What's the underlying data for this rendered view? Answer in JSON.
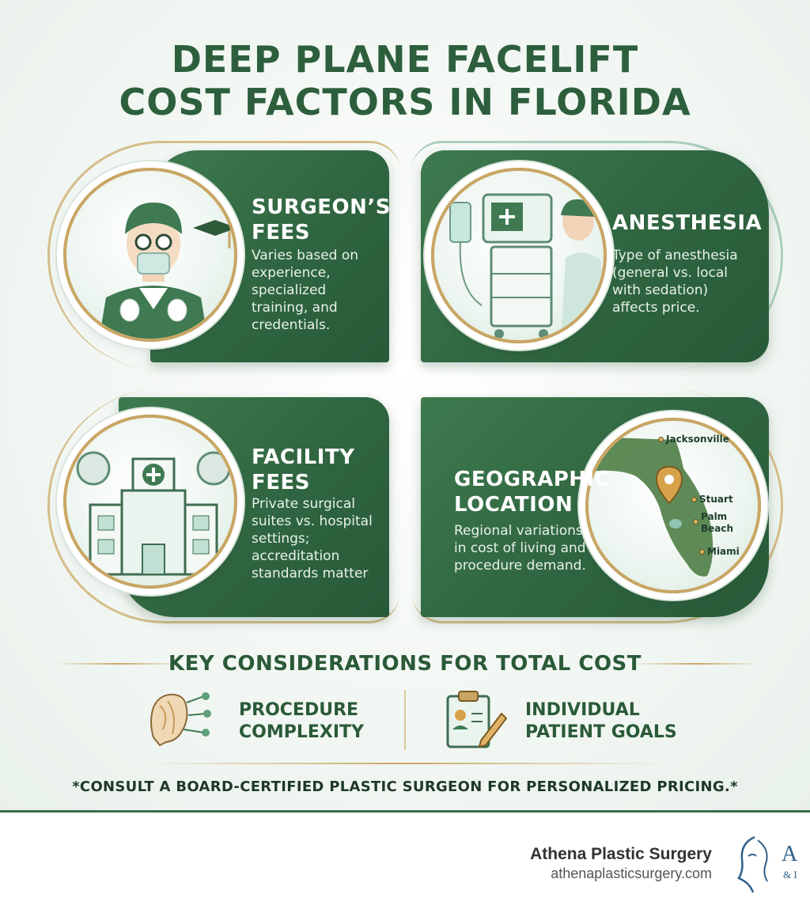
{
  "title": {
    "line1": "DEEP PLANE FACELIFT",
    "line2": "COST FACTORS IN FLORIDA"
  },
  "cards": [
    {
      "title_line1": "SURGEON’S",
      "title_line2": "FEES",
      "text": [
        "Varies based on",
        "experience,",
        "specialized",
        "training, and",
        "credentials."
      ],
      "icon": "surgeon-icon"
    },
    {
      "title_line1": "ANESTHESIA",
      "text": [
        "Type of anesthesia",
        "(general vs. local",
        "with sedation)",
        "affects price."
      ],
      "icon": "anesthesia-machine-icon"
    },
    {
      "title_line1": "FACILITY",
      "title_line2": "FEES",
      "text": [
        "Private surgical",
        "suites vs. hospital",
        "settings;",
        "accreditation",
        "standards matter"
      ],
      "icon": "hospital-icon"
    },
    {
      "title_line1": "GEOGRAPHIC",
      "title_line2": "LOCATION",
      "text": [
        "Regional variations",
        "in cost of living and",
        "procedure demand."
      ],
      "icon": "florida-map-icon"
    }
  ],
  "map_cities": [
    "Jacksonville",
    "Stuart",
    "Palm",
    "Beach",
    "Miami"
  ],
  "key_considerations": {
    "title": "KEY CONSIDERATIONS FOR TOTAL COST",
    "items": [
      {
        "line1": "PROCEDURE",
        "line2": "COMPLEXITY",
        "icon": "face-anatomy-icon"
      },
      {
        "line1": "INDIVIDUAL",
        "line2": "PATIENT GOALS",
        "icon": "clipboard-icon"
      }
    ]
  },
  "footnote": "*CONSULT A BOARD-CERTIFIED PLASTIC SURGEON FOR PERSONALIZED PRICING.*",
  "footer": {
    "brand_name": "Athena Plastic Surgery",
    "brand_url": "athenaplasticsurgery.com",
    "logo_letter": "A",
    "logo_sub": "& I"
  },
  "colors": {
    "primary_green": "#2f6540",
    "gold": "#c9a664",
    "background": "#f4f7f4"
  }
}
